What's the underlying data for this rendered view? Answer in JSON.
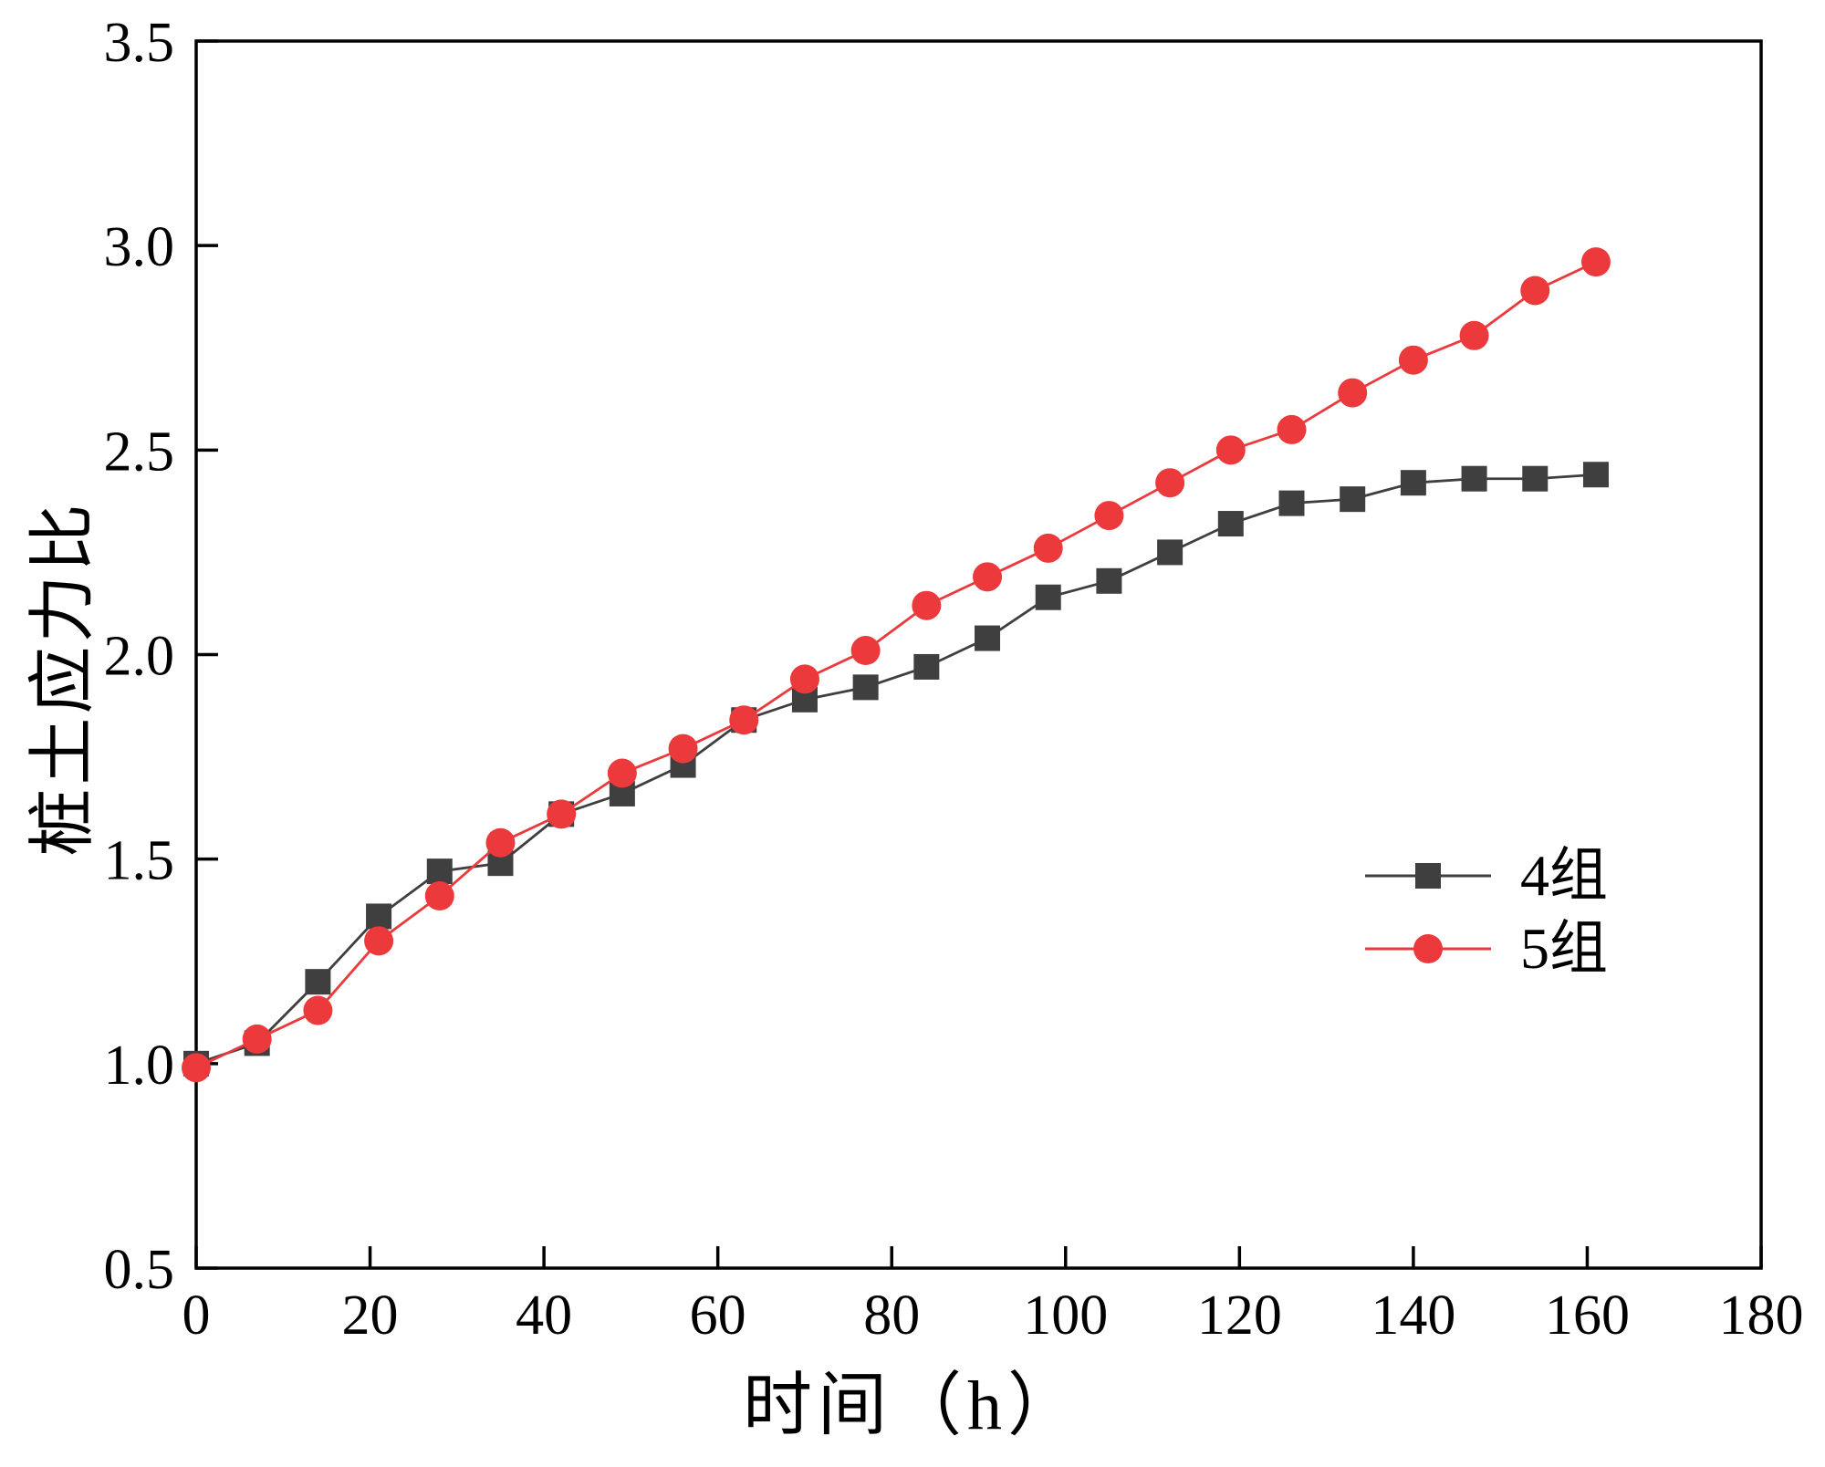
{
  "figure": {
    "background": "#ffffff",
    "frame_color": "#000000"
  },
  "chart_data": {
    "type": "line",
    "title": "",
    "xlabel": "时间（h）",
    "ylabel": "桩土应力比",
    "xlim": [
      0,
      180
    ],
    "ylim": [
      0.5,
      3.5
    ],
    "xticks": [
      0,
      20,
      40,
      60,
      80,
      100,
      120,
      140,
      160,
      180
    ],
    "yticks": [
      0.5,
      1.0,
      1.5,
      2.0,
      2.5,
      3.0,
      3.5
    ],
    "grid": false,
    "legend_position": "right-center",
    "x": [
      0,
      7,
      14,
      21,
      28,
      35,
      42,
      49,
      56,
      63,
      70,
      77,
      84,
      91,
      98,
      105,
      112,
      119,
      126,
      133,
      140,
      147,
      154,
      161
    ],
    "series": [
      {
        "name": "4组",
        "color": "#3f3f3f",
        "marker": "square",
        "values": [
          1.0,
          1.05,
          1.2,
          1.36,
          1.47,
          1.49,
          1.61,
          1.66,
          1.73,
          1.84,
          1.89,
          1.92,
          1.97,
          2.04,
          2.14,
          2.18,
          2.25,
          2.32,
          2.37,
          2.38,
          2.42,
          2.43,
          2.43,
          2.44
        ]
      },
      {
        "name": "5组",
        "color": "#ec3a3c",
        "marker": "circle",
        "values": [
          0.99,
          1.06,
          1.13,
          1.3,
          1.41,
          1.54,
          1.61,
          1.71,
          1.77,
          1.84,
          1.94,
          2.01,
          2.12,
          2.19,
          2.26,
          2.34,
          2.42,
          2.5,
          2.55,
          2.64,
          2.72,
          2.78,
          2.89,
          2.96
        ]
      }
    ]
  }
}
